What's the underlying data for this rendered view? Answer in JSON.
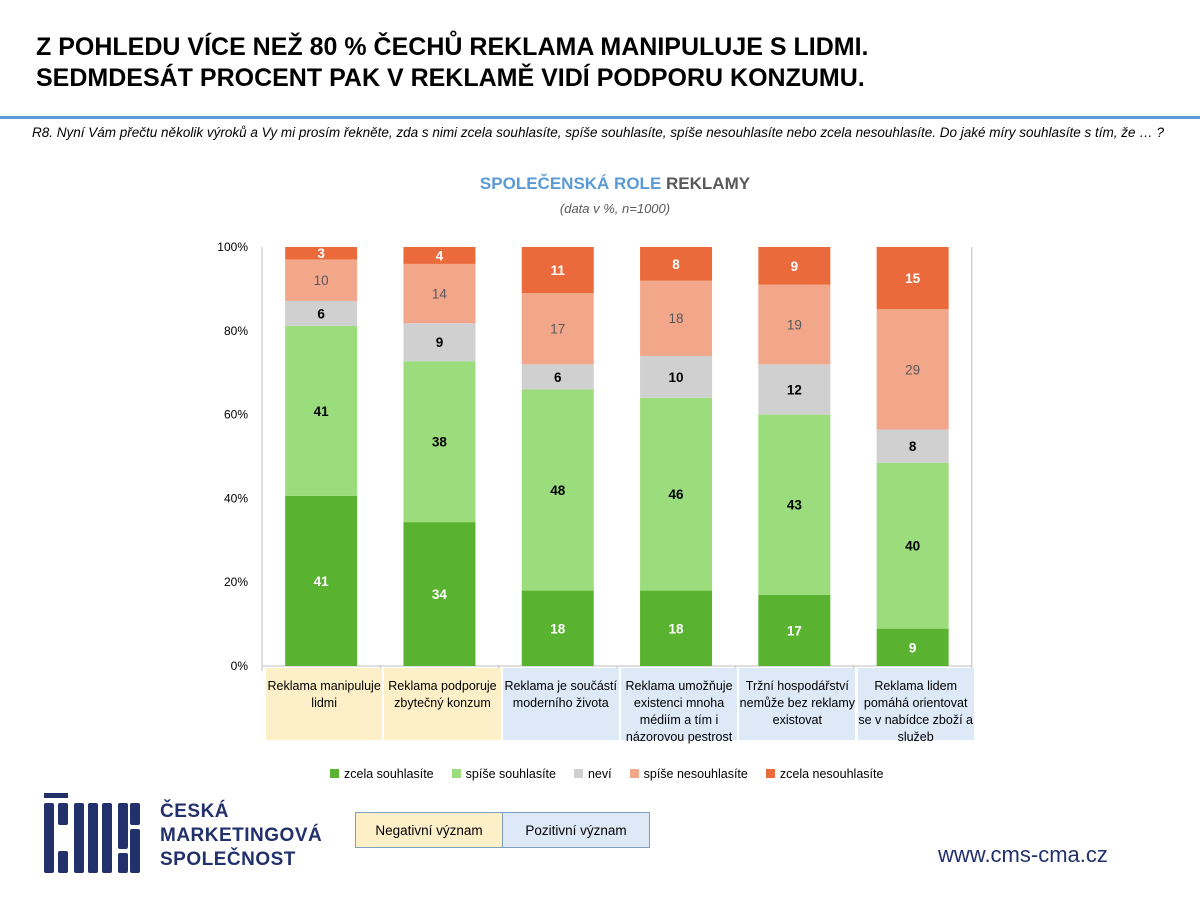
{
  "header": {
    "title_line1": "Z POHLEDU VÍCE NEŽ 80 % ČECHŮ REKLAMA MANIPULUJE S LIDMI.",
    "title_line2": "SEDMDESÁT PROCENT PAK V REKLAMĚ VIDÍ PODPORU KONZUMU.",
    "question": "R8. Nyní Vám přečtu několik výroků a Vy mi prosím řekněte, zda s nimi zcela souhlasíte, spíše souhlasíte, spíše nesouhlasíte nebo zcela nesouhlasíte. Do jaké míry souhlasíte s tím, že … ?"
  },
  "chart_data": {
    "type": "bar",
    "stacked": true,
    "title_part1": "SPOLEČENSKÁ ROLE",
    "title_part2": "REKLAMY",
    "subtitle": "(data v %, n=1000)",
    "categories": [
      "Reklama manipuluje lidmi",
      "Reklama podporuje zbytečný konzum",
      "Reklama je součástí moderního života",
      "Reklama umožňuje existenci mnoha médiím a tím i názorovou pestrost",
      "Tržní hospodářství nemůže bez reklamy existovat",
      "Reklama lidem pomáhá orientovat se v nabídce zboží a služeb"
    ],
    "category_groups": [
      "negative",
      "negative",
      "positive",
      "positive",
      "positive",
      "positive"
    ],
    "series": [
      {
        "name": "zcela souhlasíte",
        "color": "#5ab330",
        "label_color": "#ffffff",
        "values": [
          41,
          34,
          18,
          18,
          17,
          9
        ]
      },
      {
        "name": "spíše souhlasíte",
        "color": "#9bdc7c",
        "label_color": "#000000",
        "values": [
          41,
          38,
          48,
          46,
          43,
          40
        ]
      },
      {
        "name": "neví",
        "color": "#d0d0d0",
        "label_color": "#000000",
        "values": [
          6,
          9,
          6,
          10,
          12,
          8
        ]
      },
      {
        "name": "spíše nesouhlasíte",
        "color": "#f2a68a",
        "label_color": "#595959",
        "values": [
          10,
          14,
          17,
          18,
          19,
          29
        ]
      },
      {
        "name": "zcela nesouhlasíte",
        "color": "#ea6a3c",
        "label_color": "#ffffff",
        "values": [
          3,
          4,
          11,
          8,
          9,
          15
        ]
      }
    ],
    "yticks": [
      "0%",
      "20%",
      "40%",
      "60%",
      "80%",
      "100%"
    ],
    "ylim": [
      0,
      100
    ],
    "legend": "bottom"
  },
  "key": {
    "negative": "Negativní význam",
    "positive": "Pozitivní význam",
    "negative_color": "#fdf0c8",
    "positive_color": "#dde9f6"
  },
  "logo": {
    "line1": "ČESKÁ",
    "line2": "MARKETINGOVÁ",
    "line3": "SPOLEČNOST"
  },
  "footer": {
    "url": "www.cms-cma.cz"
  }
}
